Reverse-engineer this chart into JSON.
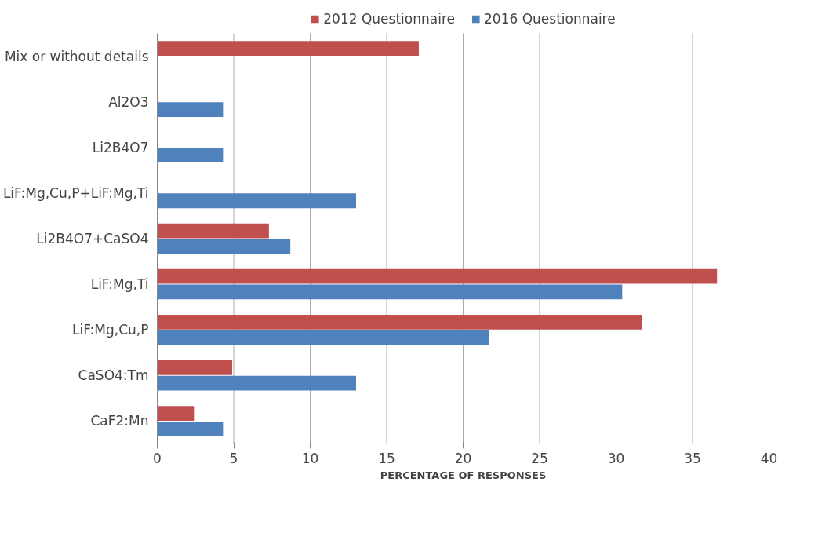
{
  "chart_data": {
    "type": "bar",
    "orientation": "horizontal",
    "xlabel": "PERCENTAGE OF RESPONSES",
    "categories": [
      "Mix or without details",
      "Al2O3",
      "Li2B4O7",
      "LiF:Mg,Cu,P+LiF:Mg,Ti",
      "Li2B4O7+CaSO4",
      "LiF:Mg,Ti",
      "LiF:Mg,Cu,P",
      "CaSO4:Tm",
      "CaF2:Mn"
    ],
    "series": [
      {
        "name": "2012 Questionnaire",
        "color": "#c0504d",
        "values": [
          17.1,
          null,
          null,
          null,
          7.3,
          36.6,
          31.7,
          4.9,
          2.4
        ]
      },
      {
        "name": "2016 Questionnaire",
        "color": "#4f81bd",
        "values": [
          null,
          4.3,
          4.3,
          13.0,
          8.7,
          30.4,
          21.7,
          13.0,
          4.3
        ]
      }
    ],
    "xlim": [
      0,
      40
    ],
    "xticks": [
      0,
      5,
      10,
      15,
      20,
      25,
      30,
      35,
      40
    ],
    "grid": "x",
    "legend": "top"
  }
}
